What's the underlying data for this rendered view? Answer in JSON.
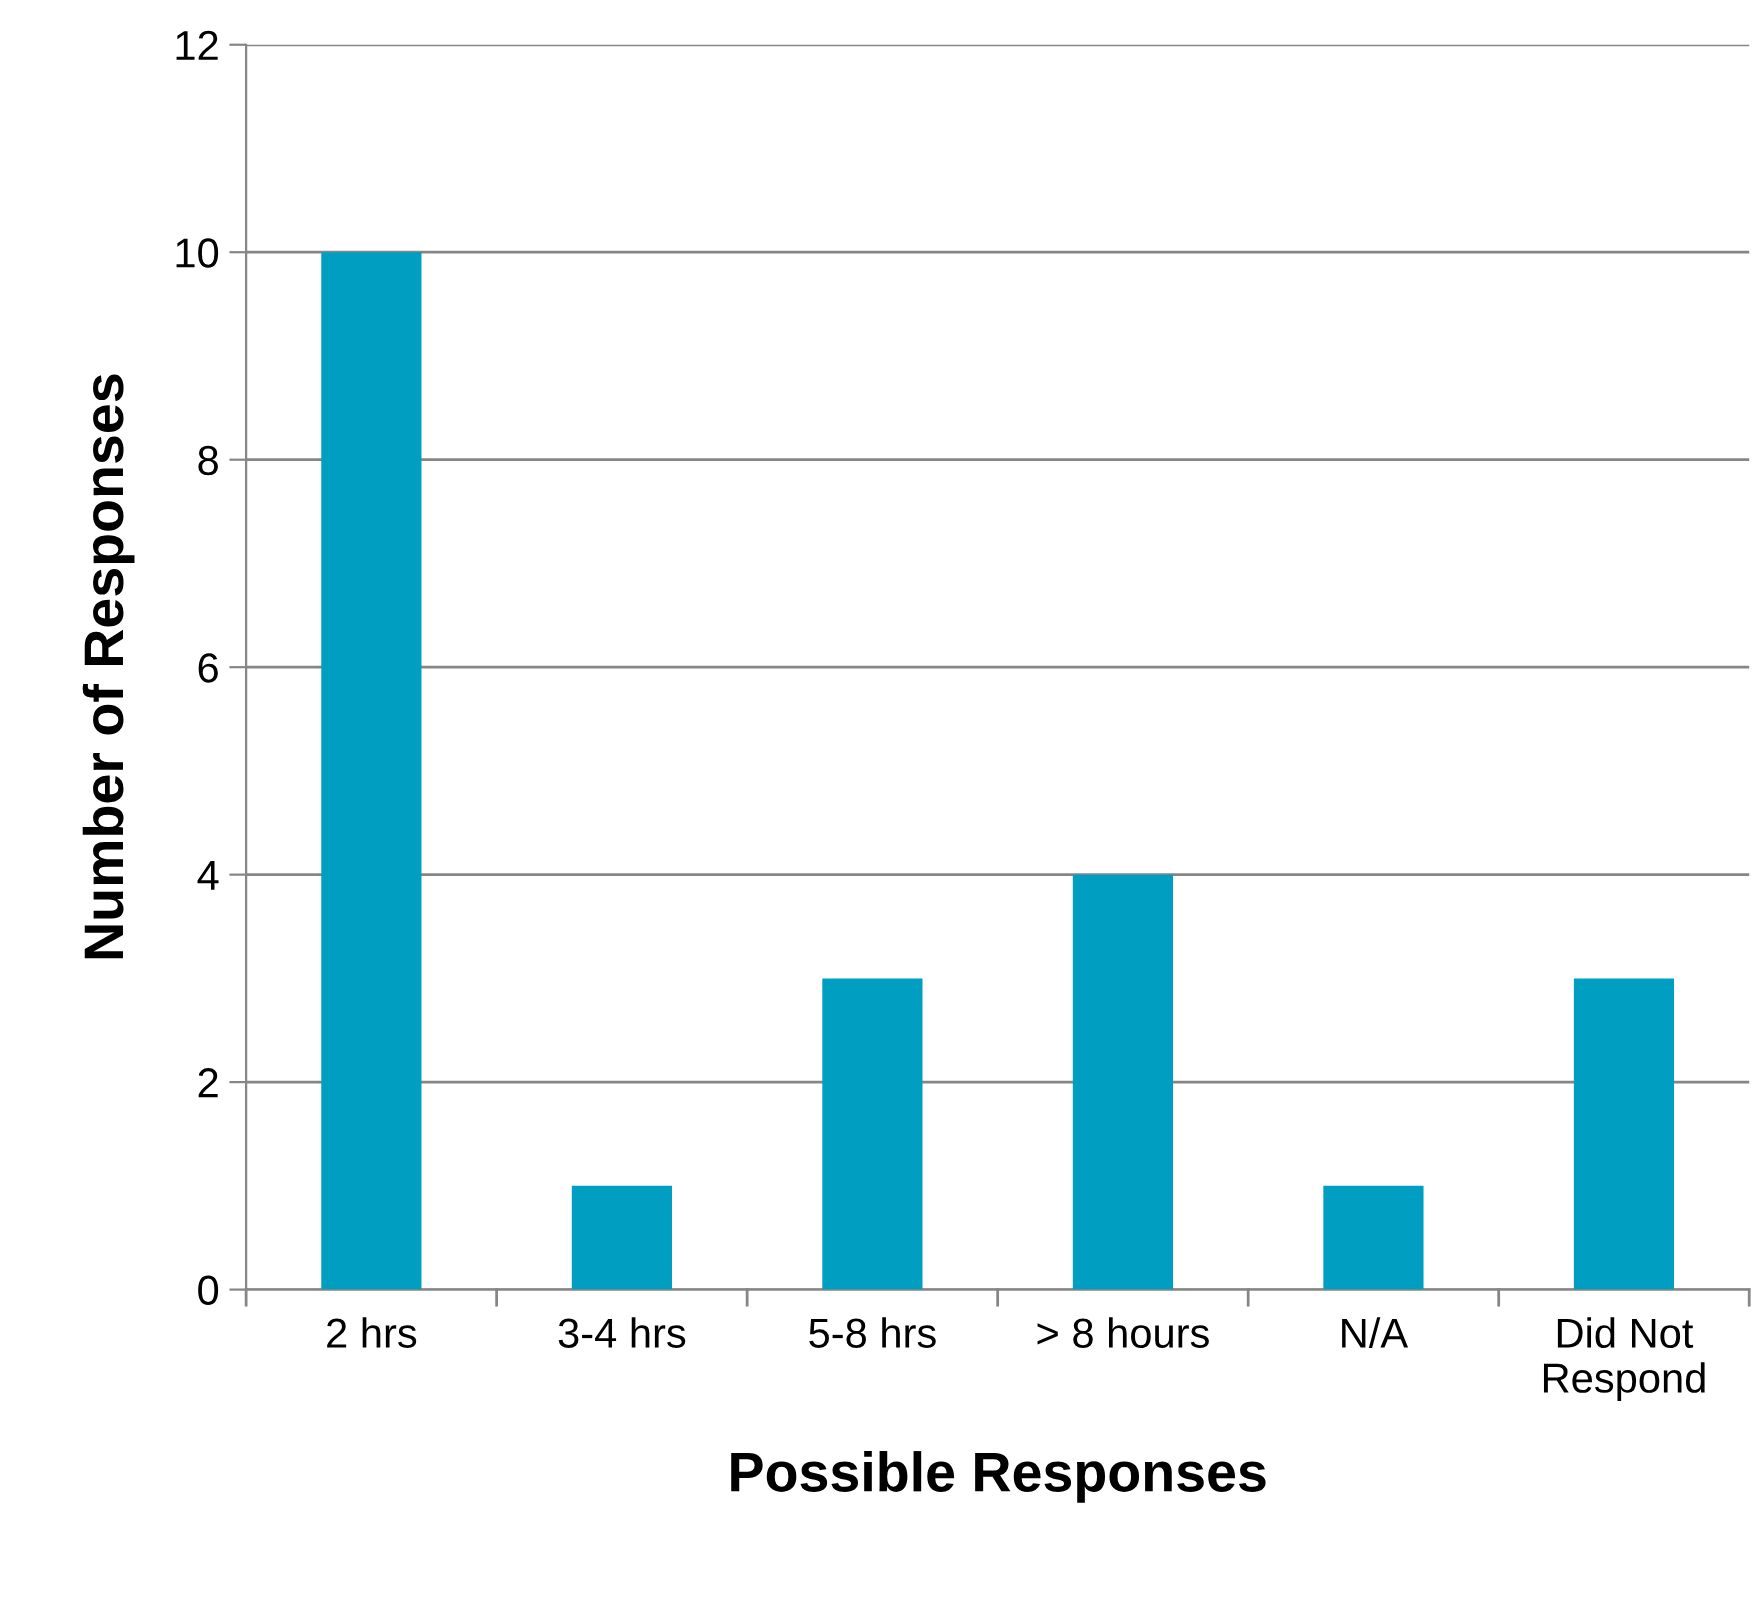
{
  "chart_data": {
    "type": "bar",
    "xlabel": "Possible Responses",
    "ylabel": "Number of Responses",
    "categories": [
      "2 hrs",
      "3-4 hrs",
      "5-8 hrs",
      "> 8 hours",
      "N/A",
      "Did Not\nRespond"
    ],
    "values": [
      10,
      1,
      3,
      4,
      1,
      3
    ],
    "color": "#009fc2",
    "ylim": [
      0,
      12
    ],
    "yticks": [
      0,
      2,
      4,
      6,
      8,
      10,
      12
    ],
    "grid": "y"
  }
}
